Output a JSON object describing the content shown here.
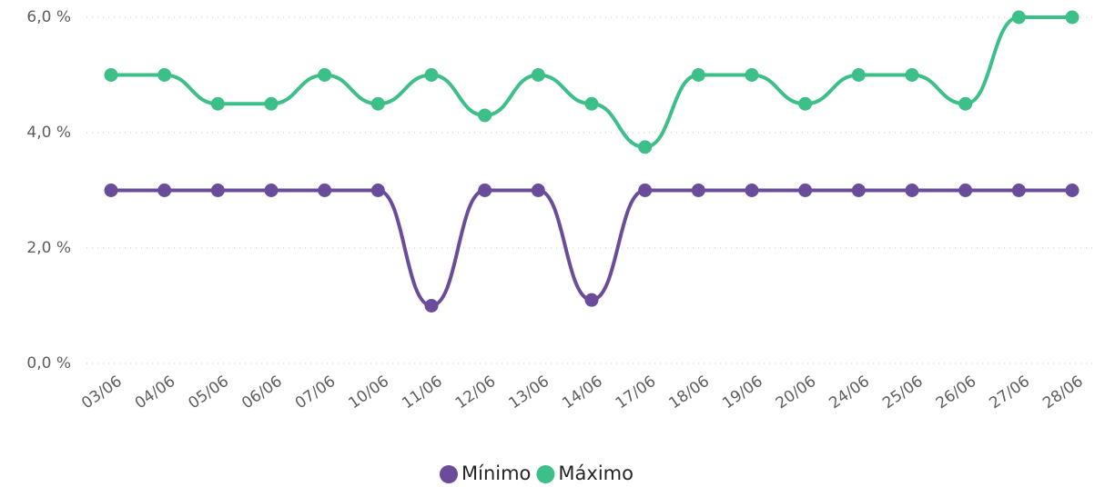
{
  "chart_data": {
    "type": "line",
    "categories": [
      "03/06",
      "04/06",
      "05/06",
      "06/06",
      "07/06",
      "10/06",
      "11/06",
      "12/06",
      "13/06",
      "14/06",
      "17/06",
      "18/06",
      "19/06",
      "20/06",
      "24/06",
      "25/06",
      "26/06",
      "27/06",
      "28/06"
    ],
    "series": [
      {
        "name": "Mínimo",
        "color": "#6b4c9a",
        "values": [
          3,
          3,
          3,
          3,
          3,
          3,
          1,
          3,
          3,
          1.1,
          3,
          3,
          3,
          3,
          3,
          3,
          3,
          3,
          3
        ]
      },
      {
        "name": "Máximo",
        "color": "#3dbf8a",
        "values": [
          5,
          5,
          4.5,
          4.5,
          5,
          4.5,
          5,
          4.3,
          5,
          4.5,
          3.75,
          5,
          5,
          4.5,
          5,
          5,
          4.5,
          6,
          6
        ]
      }
    ],
    "ylim": [
      0,
      6
    ],
    "yticks": [
      {
        "value": 0,
        "label": "0,0 %"
      },
      {
        "value": 2,
        "label": "2,0 %"
      },
      {
        "value": 4,
        "label": "4,0 %"
      },
      {
        "value": 6,
        "label": "6,0 %"
      }
    ],
    "grid": true,
    "legend": "bottom"
  }
}
